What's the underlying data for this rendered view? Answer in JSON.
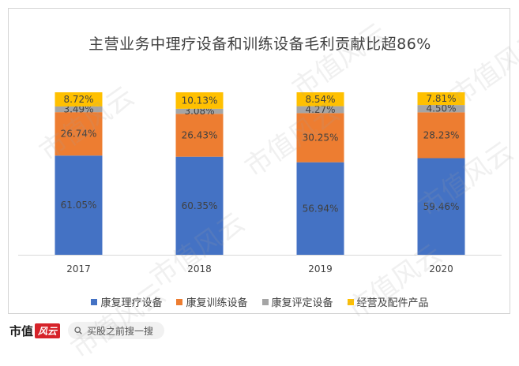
{
  "watermark": "市值风云",
  "chart_data": {
    "type": "bar",
    "stacked": true,
    "title": "主营业务中理疗设备和训练设备毛利贡献比超86%",
    "categories": [
      "2017",
      "2018",
      "2019",
      "2020"
    ],
    "ylim": [
      0,
      100
    ],
    "grid": false,
    "legend_position": "bottom",
    "series": [
      {
        "name": "康复理疗设备",
        "color": "#4472c4",
        "values": [
          61.05,
          60.35,
          56.94,
          59.46
        ],
        "labels": [
          "61.05%",
          "60.35%",
          "56.94%",
          "59.46%"
        ]
      },
      {
        "name": "康复训练设备",
        "color": "#ed7d31",
        "values": [
          26.74,
          26.43,
          30.25,
          28.23
        ],
        "labels": [
          "26.74%",
          "26.43%",
          "30.25%",
          "28.23%"
        ]
      },
      {
        "name": "康复评定设备",
        "color": "#a5a5a5",
        "values": [
          3.49,
          3.08,
          4.27,
          4.5
        ],
        "labels": [
          "3.49%",
          "3.08%",
          "4.27%",
          "4.50%"
        ]
      },
      {
        "name": "经营及配件产品",
        "color": "#ffc000",
        "values": [
          8.72,
          10.13,
          8.54,
          7.81
        ],
        "labels": [
          "8.72%",
          "10.13%",
          "8.54%",
          "7.81%"
        ]
      }
    ]
  },
  "footer": {
    "brand_text": "市值",
    "brand_mark": "风云",
    "search_placeholder": "买股之前搜一搜"
  }
}
